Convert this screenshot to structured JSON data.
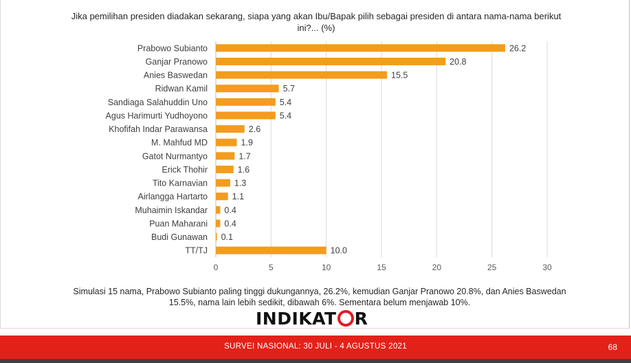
{
  "question": "Jika pemilihan presiden diadakan sekarang, siapa yang akan Ibu/Bapak pilih sebagai presiden di antara nama-nama berikut ini?... (%)",
  "chart_data": {
    "type": "bar",
    "orientation": "horizontal",
    "categories": [
      "Prabowo Subianto",
      "Ganjar Pranowo",
      "Anies Baswedan",
      "Ridwan Kamil",
      "Sandiaga Salahuddin Uno",
      "Agus Harimurti Yudhoyono",
      "Khofifah Indar Parawansa",
      "M. Mahfud MD",
      "Gatot Nurmantyo",
      "Erick Thohir",
      "Tito Karnavian",
      "Airlangga Hartarto",
      "Muhaimin Iskandar",
      "Puan Maharani",
      "Budi Gunawan",
      "TT/TJ"
    ],
    "values": [
      26.2,
      20.8,
      15.5,
      5.7,
      5.4,
      5.4,
      2.6,
      1.9,
      1.7,
      1.6,
      1.3,
      1.1,
      0.4,
      0.4,
      0.1,
      10.0
    ],
    "value_labels": [
      "26.2",
      "20.8",
      "15.5",
      "5.7",
      "5.4",
      "5.4",
      "2.6",
      "1.9",
      "1.7",
      "1.6",
      "1.3",
      "1.1",
      "0.4",
      "0.4",
      "0.1",
      "10.0"
    ],
    "xlim": [
      0,
      30
    ],
    "xticks": [
      0,
      5,
      10,
      15,
      20,
      25,
      30
    ],
    "grid": true,
    "bar_color": "#f39c1e"
  },
  "summary": "Simulasi 15 nama, Prabowo Subianto paling tinggi dukungannya, 26.2%, kemudian Ganjar Pranowo 20.8%, dan Anies Baswedan 15.5%, nama lain lebih sedikit, dibawah 6%. Sementara belum menjawab 10%.",
  "logo": {
    "left": "INDIKAT",
    "right": "R"
  },
  "footer": {
    "survey": "SURVEI NASIONAL: 30 JULI - 4 AGUSTUS 2021",
    "page": "68"
  },
  "colors": {
    "accent": "#e32119",
    "bar": "#f39c1e"
  }
}
